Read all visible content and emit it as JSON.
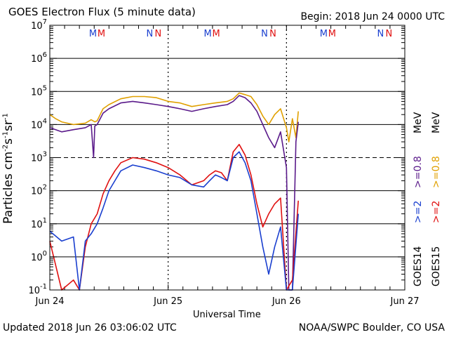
{
  "header": {
    "title": "GOES Electron Flux (5 minute data)",
    "begin": "Begin: 2018 Jun 24 0000 UTC"
  },
  "footer": {
    "updated": "Updated 2018 Jun 26 03:06:02 UTC",
    "credit": "NOAA/SWPC Boulder, CO USA"
  },
  "colors": {
    "goes14_2mev": "#1a3fcf",
    "goes15_2mev": "#e01010",
    "goes14_08mev": "#5a1a8a",
    "goes15_08mev": "#e0a000",
    "event_m": "#1a3fcf",
    "event_m2": "#e01010"
  },
  "legend": {
    "goes14": "GOES14",
    "goes15": "GOES15",
    "g14_2": ">=2",
    "g15_2": ">=2",
    "g14_08": ">=0.8",
    "g15_08": ">=0.8",
    "mev1": "MeV",
    "mev2": "MeV"
  },
  "events": [
    {
      "pair": [
        "M",
        "M"
      ],
      "day": 0.4
    },
    {
      "pair": [
        "N",
        "N"
      ],
      "day": 0.88
    },
    {
      "pair": [
        "M",
        "M"
      ],
      "day": 1.37
    },
    {
      "pair": [
        "N",
        "N"
      ],
      "day": 1.85
    },
    {
      "pair": [
        "M",
        "M"
      ],
      "day": 2.35
    },
    {
      "pair": [
        "N",
        "N"
      ],
      "day": 2.83
    }
  ],
  "chart_data": {
    "type": "line",
    "title": "GOES Electron Flux (5 minute data)",
    "xlabel": "Universal Time",
    "ylabel": "Particles cm-2s-1sr-1",
    "y_scale": "log",
    "ylim": [
      0.1,
      10000000
    ],
    "xlim_days": [
      0,
      3
    ],
    "x_ticks": [
      "Jun 24",
      "Jun 25",
      "Jun 26",
      "Jun 27"
    ],
    "y_ticks": [
      {
        "base": "10",
        "exp": "-1"
      },
      {
        "base": "10",
        "exp": "0"
      },
      {
        "base": "10",
        "exp": "1"
      },
      {
        "base": "10",
        "exp": "2"
      },
      {
        "base": "10",
        "exp": "3"
      },
      {
        "base": "10",
        "exp": "4"
      },
      {
        "base": "10",
        "exp": "5"
      },
      {
        "base": "10",
        "exp": "6"
      },
      {
        "base": "10",
        "exp": "7"
      }
    ],
    "threshold_dashed": 1000,
    "series": [
      {
        "name": "GOES15 >=0.8 MeV",
        "color": "#e0a000",
        "x": [
          0,
          0.05,
          0.1,
          0.2,
          0.3,
          0.35,
          0.38,
          0.4,
          0.45,
          0.5,
          0.6,
          0.7,
          0.8,
          0.9,
          1.0,
          1.1,
          1.2,
          1.3,
          1.4,
          1.5,
          1.55,
          1.6,
          1.65,
          1.7,
          1.75,
          1.8,
          1.85,
          1.9,
          1.95,
          2.0,
          2.02,
          2.05,
          2.08,
          2.1
        ],
        "y": [
          20000,
          15000,
          12000,
          10000,
          11000,
          14000,
          12000,
          13000,
          30000,
          40000,
          60000,
          70000,
          70000,
          65000,
          50000,
          45000,
          35000,
          40000,
          45000,
          50000,
          60000,
          90000,
          80000,
          70000,
          40000,
          18000,
          10000,
          20000,
          30000,
          8000,
          3000,
          15000,
          4000,
          25000
        ]
      },
      {
        "name": "GOES14 >=0.8 MeV",
        "color": "#5a1a8a",
        "x": [
          0,
          0.05,
          0.1,
          0.2,
          0.3,
          0.35,
          0.37,
          0.38,
          0.4,
          0.45,
          0.5,
          0.6,
          0.7,
          0.8,
          0.9,
          1.0,
          1.1,
          1.2,
          1.3,
          1.4,
          1.5,
          1.55,
          1.6,
          1.65,
          1.7,
          1.75,
          1.8,
          1.85,
          1.9,
          1.95,
          2.0,
          2.02,
          2.05,
          2.08,
          2.1
        ],
        "y": [
          8000,
          7000,
          6000,
          7000,
          8000,
          10000,
          1000,
          9000,
          10000,
          22000,
          30000,
          45000,
          50000,
          45000,
          40000,
          35000,
          30000,
          25000,
          30000,
          35000,
          40000,
          50000,
          75000,
          65000,
          45000,
          25000,
          10000,
          4000,
          2000,
          6000,
          500,
          0.1,
          0.1,
          3000,
          12000
        ]
      },
      {
        "name": "GOES15 >=2 MeV",
        "color": "#e01010",
        "x": [
          0,
          0.1,
          0.2,
          0.25,
          0.3,
          0.35,
          0.4,
          0.45,
          0.5,
          0.55,
          0.6,
          0.7,
          0.8,
          0.9,
          1.0,
          1.1,
          1.2,
          1.3,
          1.35,
          1.4,
          1.45,
          1.5,
          1.55,
          1.6,
          1.65,
          1.7,
          1.75,
          1.8,
          1.85,
          1.9,
          1.95,
          2.0,
          2.05,
          2.1
        ],
        "y": [
          3,
          0.1,
          0.2,
          0.1,
          2,
          10,
          20,
          80,
          200,
          400,
          700,
          1000,
          900,
          700,
          500,
          300,
          150,
          200,
          300,
          400,
          350,
          200,
          1500,
          2500,
          1200,
          300,
          40,
          8,
          20,
          40,
          60,
          0.1,
          0.2,
          50
        ]
      },
      {
        "name": "GOES14 >=2 MeV",
        "color": "#1a3fcf",
        "x": [
          0,
          0.1,
          0.2,
          0.25,
          0.3,
          0.35,
          0.4,
          0.45,
          0.5,
          0.55,
          0.6,
          0.7,
          0.8,
          0.9,
          1.0,
          1.1,
          1.2,
          1.3,
          1.35,
          1.4,
          1.45,
          1.5,
          1.55,
          1.6,
          1.65,
          1.7,
          1.75,
          1.8,
          1.85,
          1.9,
          1.95,
          2.0,
          2.05,
          2.1
        ],
        "y": [
          6,
          3,
          4,
          0.1,
          3,
          5,
          10,
          30,
          100,
          200,
          400,
          600,
          500,
          400,
          300,
          250,
          150,
          130,
          200,
          300,
          250,
          200,
          1000,
          1500,
          700,
          200,
          20,
          2,
          0.3,
          2,
          8,
          0.1,
          0.1,
          20
        ]
      }
    ]
  }
}
